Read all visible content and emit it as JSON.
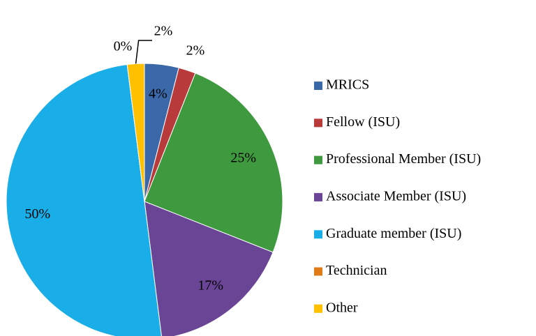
{
  "chart_data": {
    "type": "pie",
    "categories": [
      "MRICS",
      "Fellow (ISU)",
      "Professional Member (ISU)",
      "Associate Member (ISU)",
      "Graduate member (ISU)",
      "Technician",
      "Other"
    ],
    "values": [
      4,
      2,
      25,
      17,
      50,
      0,
      2
    ],
    "value_labels": [
      "4%",
      "2%",
      "25%",
      "17%",
      "50%",
      "0%",
      "2%"
    ],
    "colors": [
      "#3a68a8",
      "#b83a3a",
      "#3f9a3f",
      "#6a4596",
      "#1aaee8",
      "#e07b1a",
      "#ffc000"
    ],
    "legend": "right"
  }
}
